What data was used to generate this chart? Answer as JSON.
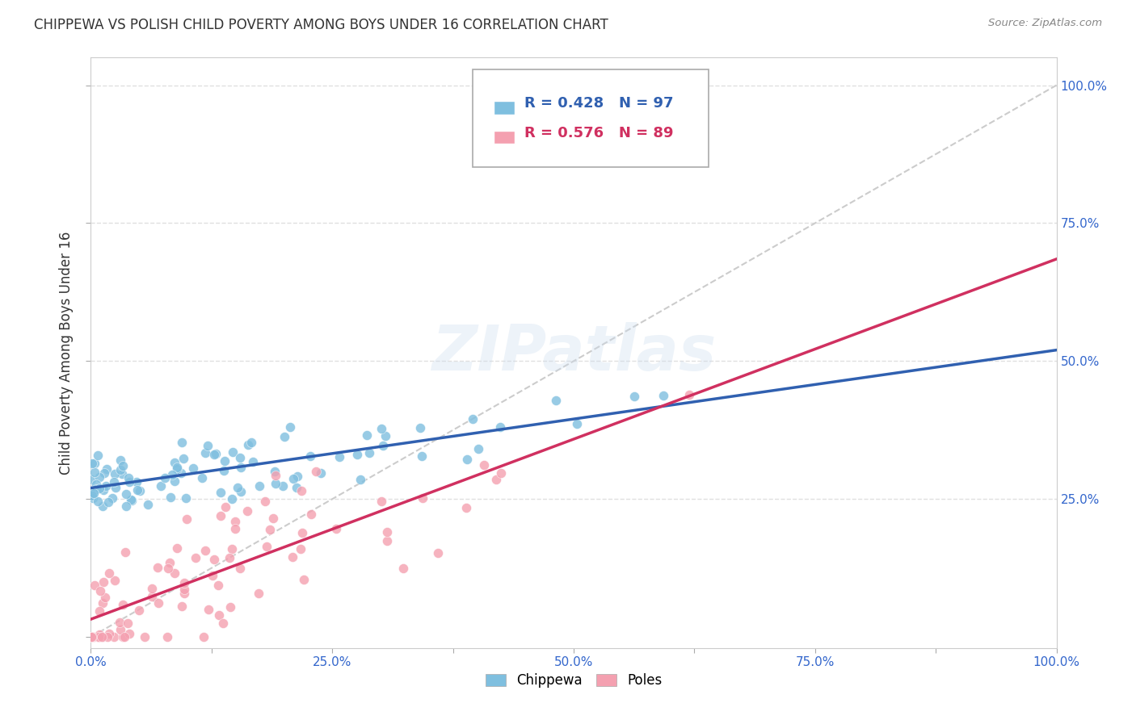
{
  "title": "CHIPPEWA VS POLISH CHILD POVERTY AMONG BOYS UNDER 16 CORRELATION CHART",
  "source": "Source: ZipAtlas.com",
  "ylabel": "Child Poverty Among Boys Under 16",
  "xlim": [
    0,
    1.0
  ],
  "ylim": [
    -0.02,
    1.05
  ],
  "chippewa_R": 0.428,
  "chippewa_N": 97,
  "poles_R": 0.576,
  "poles_N": 89,
  "chippewa_color": "#7fbfdf",
  "poles_color": "#f4a0b0",
  "chippewa_line_color": "#3060b0",
  "poles_line_color": "#d03060",
  "diagonal_color": "#cccccc",
  "background_color": "#ffffff",
  "grid_color": "#e0e0e0",
  "watermark": "ZIPatlas",
  "xticklabels": [
    "0.0%",
    "",
    "25.0%",
    "",
    "50.0%",
    "",
    "75.0%",
    "",
    "100.0%"
  ],
  "xtick_vals": [
    0.0,
    0.125,
    0.25,
    0.375,
    0.5,
    0.625,
    0.75,
    0.875,
    1.0
  ],
  "ytick_vals": [
    0.0,
    0.25,
    0.5,
    0.75,
    1.0
  ],
  "yticklabels_right": [
    "",
    "25.0%",
    "50.0%",
    "75.0%",
    "100.0%"
  ]
}
